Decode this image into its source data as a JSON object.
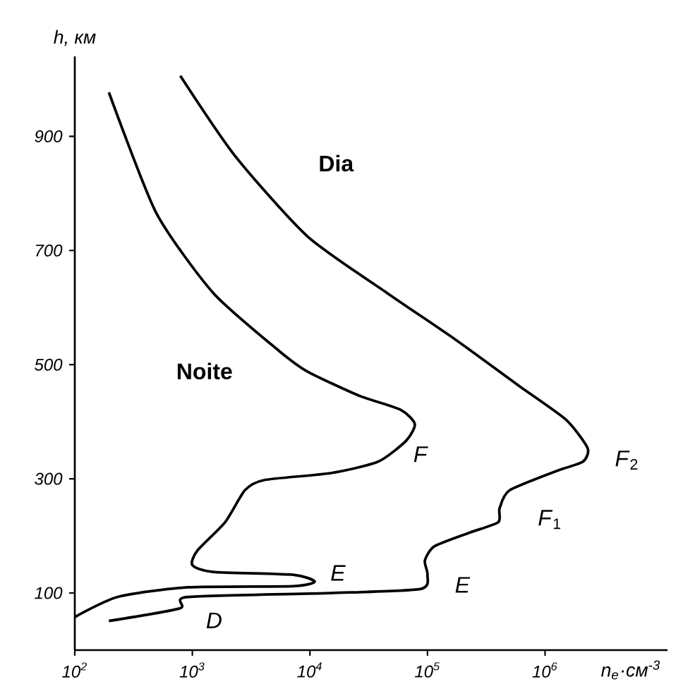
{
  "chart_data": {
    "type": "line",
    "xlabel": "n$_{e}$·см$^{-3}$",
    "ylabel": "h, км",
    "log": "x",
    "xlim": [
      100,
      11000000
    ],
    "ylim": [
      0,
      1040
    ],
    "xticks": [
      {
        "value": 100,
        "label": "10$^{2}$"
      },
      {
        "value": 1000,
        "label": "10$^{3}$"
      },
      {
        "value": 10000,
        "label": "10$^{4}$"
      },
      {
        "value": 100000,
        "label": "10$^{5}$"
      },
      {
        "value": 1000000,
        "label": "10$^{6}$"
      }
    ],
    "yticks": [
      100,
      300,
      500,
      700,
      900
    ],
    "line_style": "solid",
    "color": "#000000",
    "series": [
      {
        "name": "**Noite**",
        "x": [
          195,
          490,
          1500,
          5400,
          9500,
          26000,
          59000,
          78000,
          66000,
          38000,
          15000,
          4100,
          2800,
          1900,
          1100,
          1000,
          1500,
          7200,
          11000,
          7200,
          910,
          230,
          100
        ],
        "values": [
          977,
          767,
          626,
          525,
          488,
          446,
          421,
          396,
          367,
          330,
          310,
          298,
          280,
          224,
          174,
          149,
          137,
          132,
          120,
          112,
          110,
          93,
          58
        ]
      },
      {
        "name": "**Dia**",
        "x": [
          790,
          2300,
          9500,
          45000,
          170000,
          600000,
          1500000,
          2300000,
          2100000,
          1300000,
          500000,
          410000,
          400000,
          230000,
          115000,
          95000,
          100000,
          87000,
          15000,
          910,
          780,
          195
        ],
        "values": [
          1006,
          866,
          725,
          626,
          545,
          463,
          404,
          354,
          330,
          315,
          280,
          248,
          224,
          206,
          182,
          157,
          132,
          107,
          100,
          93,
          73,
          51
        ]
      }
    ],
    "annotations": [
      "*F*",
      "*E*",
      "*E*",
      "*F*$_{2}$",
      "*F*$_{1}$",
      "*D*"
    ]
  }
}
